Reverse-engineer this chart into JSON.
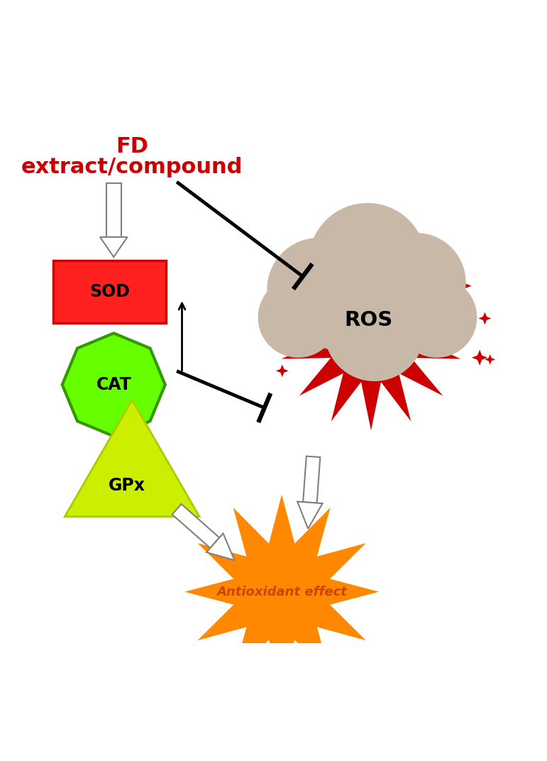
{
  "title_line1": "FD",
  "title_line2": "extract/compound",
  "title_color": "#cc0000",
  "bg_color": "#ffffff",
  "sod_color": "#ff2020",
  "sod_edge_color": "#cc0000",
  "sod_label": "SOD",
  "cat_color": "#66ff00",
  "cat_edge_color": "#339900",
  "cat_label": "CAT",
  "gpx_color": "#ccee00",
  "gpx_edge_color": "#aacc00",
  "gpx_label": "GPx",
  "antioxidant_color": "#ff8800",
  "antioxidant_label": "Antioxidant effect",
  "antioxidant_text_color": "#cc4400",
  "ros_star_color": "#cc0000",
  "ros_cloud_color": "#c8b8a8",
  "ros_label": "ROS",
  "arrow_color": "gray",
  "inhibit_color": "black"
}
